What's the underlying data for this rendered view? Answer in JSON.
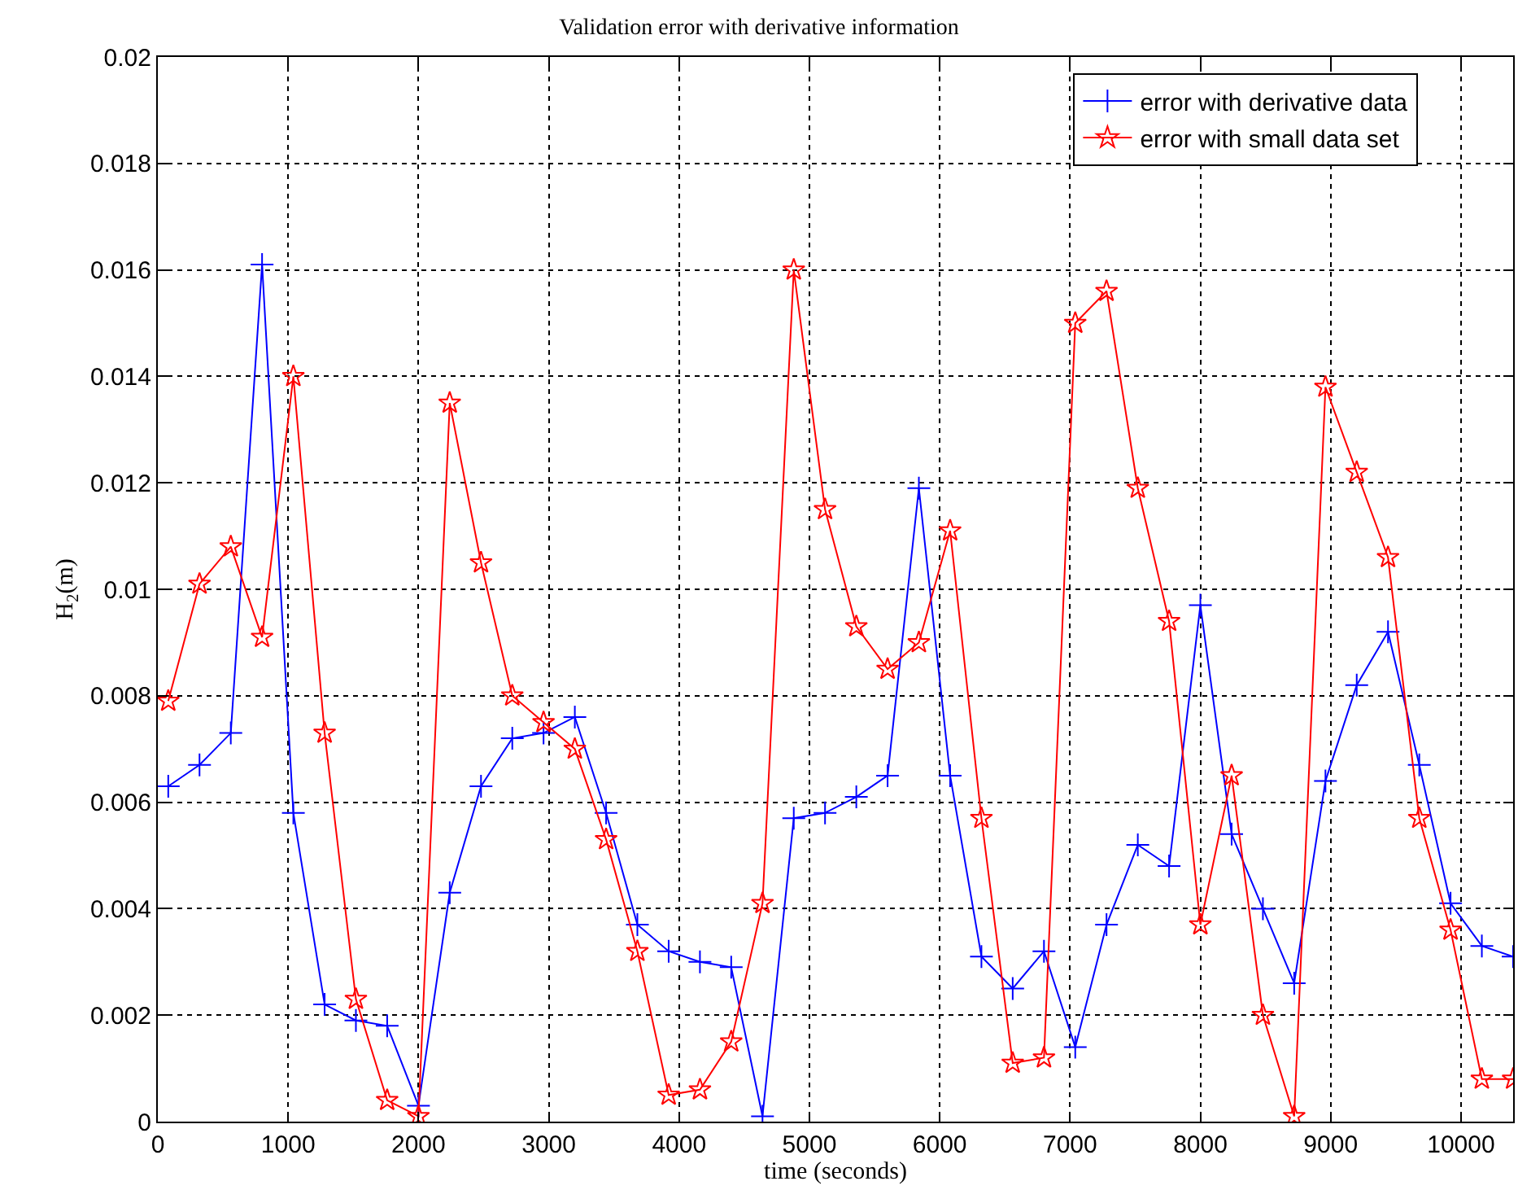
{
  "chart_data": {
    "type": "line",
    "title": "Validation error with derivative information",
    "xlabel": "time (seconds)",
    "ylabel": "H$_{2}$(m)",
    "x": [
      80,
      320,
      560,
      800,
      1040,
      1280,
      1520,
      1760,
      2000,
      2240,
      2480,
      2720,
      2960,
      3200,
      3440,
      3680,
      3920,
      4160,
      4400,
      4640,
      4880,
      5120,
      5360,
      5600,
      5840,
      6080,
      6320,
      6560,
      6800,
      7040,
      7280,
      7520,
      7760,
      8000,
      8240,
      8480,
      8720,
      8960,
      9200,
      9440,
      9680,
      9920,
      10160,
      10400
    ],
    "series": [
      {
        "name": "error with derivative data",
        "color": "#0000ff",
        "marker": "cross",
        "values": [
          0.0063,
          0.0067,
          0.0073,
          0.0161,
          0.0058,
          0.0022,
          0.0019,
          0.0018,
          0.0003,
          0.0043,
          0.0063,
          0.0072,
          0.0073,
          0.0076,
          0.0058,
          0.0037,
          0.0032,
          0.003,
          0.0029,
          0.0001,
          0.0057,
          0.0058,
          0.0061,
          0.0065,
          0.0119,
          0.0065,
          0.0031,
          0.0025,
          0.0032,
          0.0014,
          0.0037,
          0.0052,
          0.0048,
          0.0097,
          0.0054,
          0.004,
          0.0026,
          0.0064,
          0.0082,
          0.0092,
          0.0067,
          0.0041,
          0.0033,
          0.0031
        ]
      },
      {
        "name": "error with small data set",
        "color": "#ff0000",
        "marker": "star",
        "values": [
          0.0079,
          0.0101,
          0.0108,
          0.0091,
          0.014,
          0.0073,
          0.0023,
          0.0004,
          0.0001,
          0.0135,
          0.0105,
          0.008,
          0.0075,
          0.007,
          0.0053,
          0.0032,
          0.0005,
          0.0006,
          0.0015,
          0.0041,
          0.016,
          0.0115,
          0.0093,
          0.0085,
          0.009,
          0.0111,
          0.0057,
          0.0011,
          0.0012,
          0.015,
          0.0156,
          0.0119,
          0.0094,
          0.0037,
          0.0065,
          0.002,
          0.0001,
          0.0138,
          0.0122,
          0.0106,
          0.0057,
          0.0036,
          0.0008,
          0.0008
        ]
      }
    ],
    "xlim": [
      0,
      10400
    ],
    "xticks": [
      0,
      1000,
      2000,
      3000,
      4000,
      5000,
      6000,
      7000,
      8000,
      9000,
      10000
    ],
    "ylim": [
      0,
      0.02
    ],
    "yticks": [
      0,
      0.002,
      0.004,
      0.006,
      0.008,
      {
        "value": 0.01,
        "label": "0.01"
      },
      0.012,
      0.014,
      0.016,
      0.018,
      0.02
    ],
    "grid": true,
    "legend": "top right",
    "line_style": "solid"
  }
}
